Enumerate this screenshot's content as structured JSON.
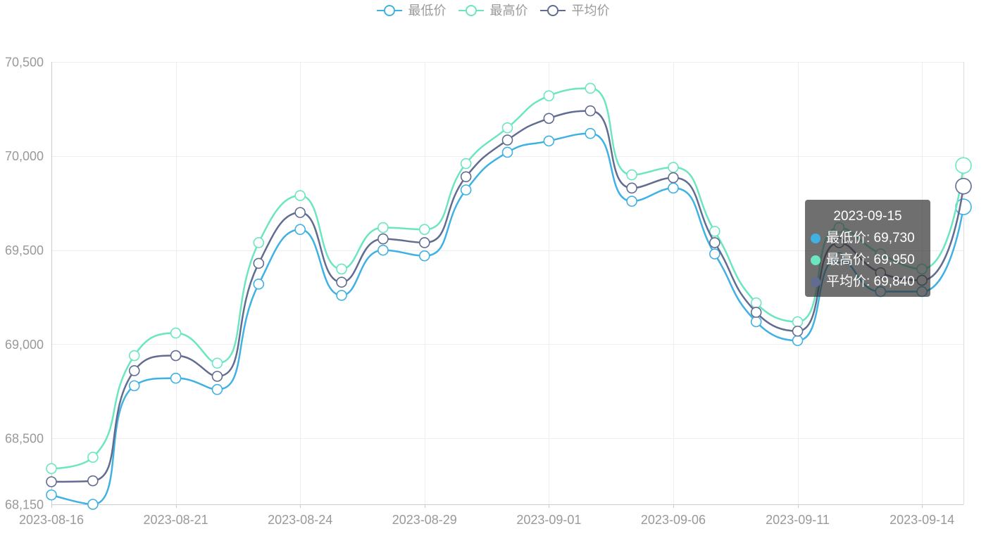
{
  "chart_data": {
    "type": "line",
    "smooth": true,
    "grid": true,
    "legend_position": "top-center",
    "categories": [
      "2023-08-16",
      "",
      "",
      "2023-08-21",
      "",
      "",
      "2023-08-24",
      "",
      "",
      "2023-08-29",
      "",
      "",
      "2023-09-01",
      "",
      "",
      "2023-09-06",
      "",
      "",
      "2023-09-11",
      "",
      "",
      "2023-09-14",
      "2023-09-15"
    ],
    "yticks": [
      "68,150",
      "68,500",
      "69,000",
      "69,500",
      "70,000",
      "70,500"
    ],
    "ylim": [
      68150,
      70500
    ],
    "series": [
      {
        "name": "最低价",
        "color": "#3fb1e3",
        "values": [
          68200,
          68150,
          68780,
          68820,
          68760,
          69320,
          69610,
          69260,
          69500,
          69470,
          69820,
          70020,
          70080,
          70120,
          69760,
          69830,
          69480,
          69120,
          69020,
          69460,
          69280,
          69280,
          69730
        ]
      },
      {
        "name": "最高价",
        "color": "#6be6c1",
        "values": [
          68340,
          68400,
          68940,
          69060,
          68900,
          69540,
          69790,
          69400,
          69620,
          69610,
          69960,
          70150,
          70320,
          70360,
          69900,
          69940,
          69600,
          69220,
          69120,
          69620,
          69480,
          69400,
          69950
        ]
      },
      {
        "name": "平均价",
        "color": "#626c91",
        "values": [
          68270,
          68275,
          68860,
          68940,
          68830,
          69430,
          69700,
          69330,
          69560,
          69540,
          69890,
          70085,
          70200,
          70240,
          69830,
          69885,
          69540,
          69170,
          69070,
          69540,
          69380,
          69340,
          69840
        ]
      }
    ]
  },
  "tooltip": {
    "rows": [
      "最低价: 69,730",
      "最高价: 69,950",
      "平均价: 69,840"
    ]
  }
}
